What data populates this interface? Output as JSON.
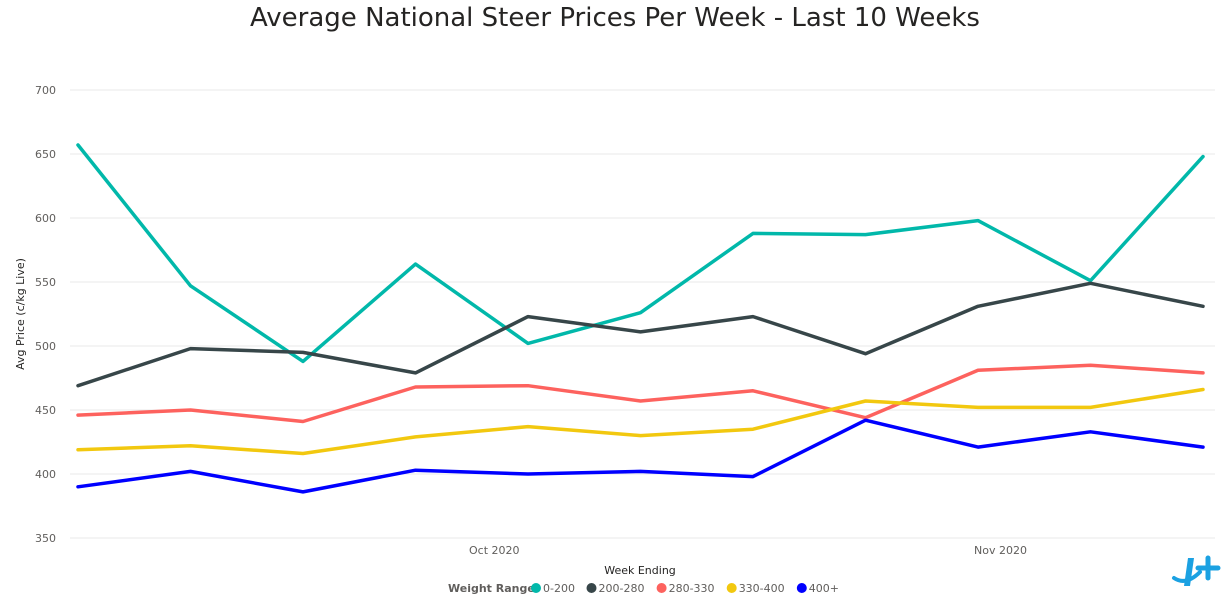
{
  "chart_data": {
    "type": "line",
    "title": "Average National Steer Prices Per Week - Last 10 Weeks",
    "xlabel": "Week Ending",
    "ylabel": "Avg Price (c/kg Live)",
    "ylim": [
      350,
      700
    ],
    "yticks": [
      350,
      400,
      450,
      500,
      550,
      600,
      650,
      700
    ],
    "x_tick_labels": [
      {
        "label": "Oct 2020",
        "at_point": 3.7
      },
      {
        "label": "Nov 2020",
        "at_point": 8.2
      }
    ],
    "grid": true,
    "legend": {
      "title": "Weight Range",
      "placement": "bottom-center"
    },
    "x": [
      0,
      1,
      2,
      3,
      4,
      5,
      6,
      7,
      8,
      9,
      10
    ],
    "series": [
      {
        "name": "0-200",
        "color": "#01b8aa",
        "values": [
          657,
          547,
          488,
          564,
          502,
          526,
          588,
          587,
          598,
          551,
          648
        ]
      },
      {
        "name": "200-280",
        "color": "#374649",
        "values": [
          469,
          498,
          495,
          479,
          523,
          511,
          523,
          494,
          531,
          549,
          531
        ]
      },
      {
        "name": "280-330",
        "color": "#fd625e",
        "values": [
          446,
          450,
          441,
          468,
          469,
          457,
          465,
          444,
          481,
          485,
          479
        ]
      },
      {
        "name": "330-400",
        "color": "#f2c80f",
        "values": [
          419,
          422,
          416,
          429,
          437,
          430,
          435,
          457,
          452,
          452,
          466
        ]
      },
      {
        "name": "400+",
        "color": "#0000ff",
        "values": [
          390,
          402,
          386,
          403,
          400,
          402,
          398,
          442,
          421,
          433,
          421
        ]
      }
    ]
  },
  "logo": {
    "name": "brand-logo",
    "color": "#1ba1e2"
  }
}
